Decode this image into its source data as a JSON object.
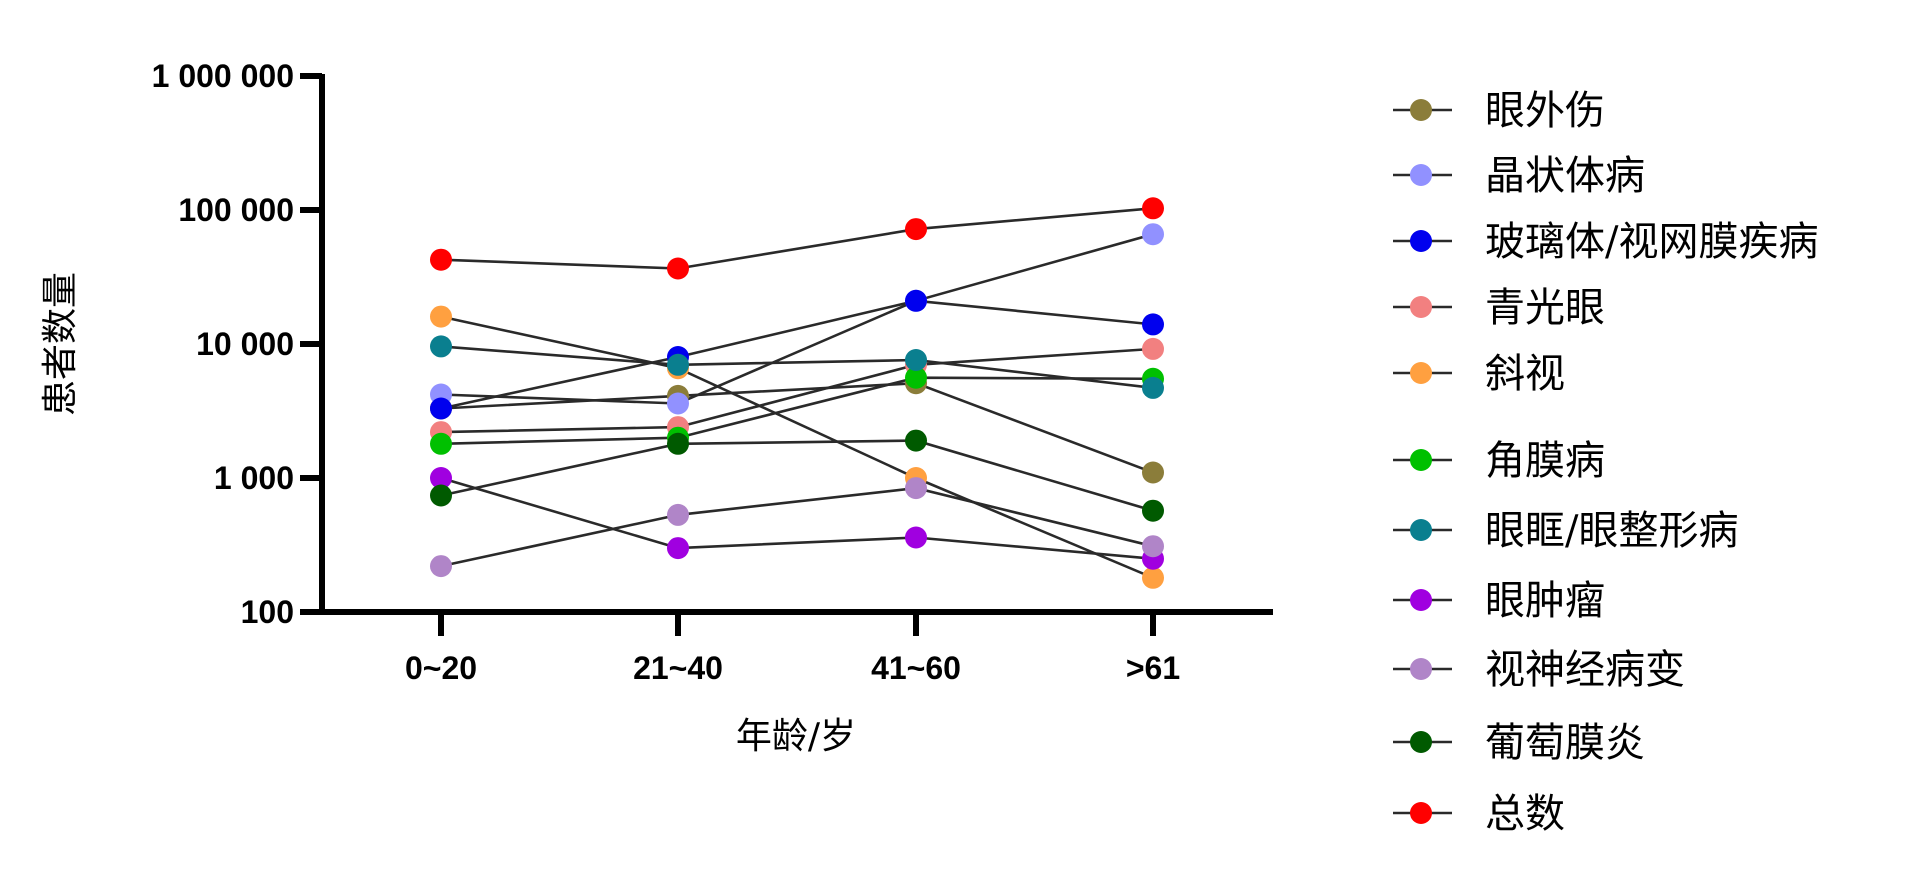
{
  "chart_data": {
    "type": "line",
    "title": "",
    "xlabel": "年龄/岁",
    "ylabel": "患者数量",
    "yscale": "log",
    "ylim": [
      100,
      1000000
    ],
    "yticks": [
      100,
      1000,
      10000,
      100000,
      1000000
    ],
    "ytick_labels": [
      "100",
      "1 000",
      "10 000",
      "100 000",
      "1 000 000"
    ],
    "categories": [
      "0~20",
      "21~40",
      "41~60",
      ">61"
    ],
    "legend_position": "right",
    "grid": false,
    "series": [
      {
        "name": "眼外伤",
        "color": "#8B7D3A",
        "values": [
          3300,
          4100,
          5100,
          1100
        ]
      },
      {
        "name": "晶状体病",
        "color": "#9191FF",
        "values": [
          4200,
          3600,
          21000,
          66000
        ]
      },
      {
        "name": "玻璃体/视网膜疾病",
        "color": "#0000EE",
        "values": [
          3300,
          8000,
          21000,
          14000
        ]
      },
      {
        "name": "青光眼",
        "color": "#F28080",
        "values": [
          2200,
          2400,
          7000,
          9200
        ]
      },
      {
        "name": "斜视",
        "color": "#FFA040",
        "values": [
          16000,
          6600,
          1000,
          180
        ]
      },
      {
        "name": "角膜病",
        "color": "#00C000",
        "values": [
          1800,
          2000,
          5600,
          5500
        ]
      },
      {
        "name": "眼眶/眼整形病",
        "color": "#0A7F8F",
        "values": [
          9600,
          7000,
          7600,
          4700
        ]
      },
      {
        "name": "眼肿瘤",
        "color": "#A000E0",
        "values": [
          1000,
          300,
          360,
          250
        ]
      },
      {
        "name": "视神经病变",
        "color": "#B085C8",
        "values": [
          220,
          530,
          840,
          310
        ]
      },
      {
        "name": "葡萄膜炎",
        "color": "#005A00",
        "values": [
          740,
          1800,
          1900,
          570
        ]
      },
      {
        "name": "总数",
        "color": "#FF0000",
        "values": [
          42600,
          36600,
          72000,
          103000
        ]
      }
    ]
  }
}
